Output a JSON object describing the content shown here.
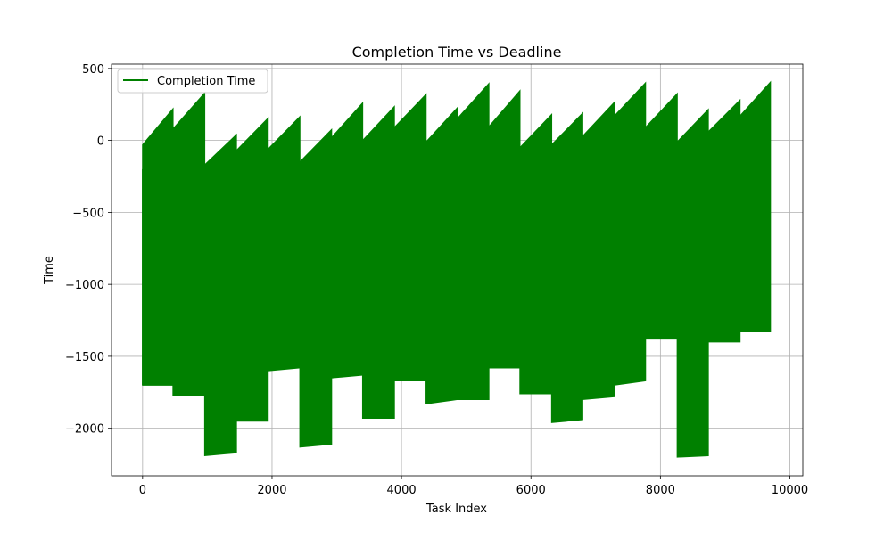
{
  "chart_data": {
    "type": "area",
    "title": "Completion Time vs Deadline",
    "xlabel": "Task Index",
    "ylabel": "Time",
    "xlim": [
      -480,
      10200
    ],
    "ylim": [
      -2330,
      530
    ],
    "x_ticks": [
      0,
      2000,
      4000,
      6000,
      8000,
      10000
    ],
    "y_ticks": [
      -2000,
      -1500,
      -1000,
      -500,
      0,
      500
    ],
    "grid": true,
    "legend_position": "top-left",
    "series": [
      {
        "name": "Completion Time",
        "color": "#008000",
        "style": "dense oscillating line filling the band between lower and upper envelopes",
        "envelope_segments": [
          {
            "x0": 0,
            "x1": 470,
            "upper0": -30,
            "upper1": 220,
            "lower0": -1700,
            "lower1": -1700
          },
          {
            "x0": 470,
            "x1": 960,
            "upper0": 80,
            "upper1": 330,
            "lower0": -1775,
            "lower1": -1775
          },
          {
            "x0": 960,
            "x1": 1450,
            "upper0": -170,
            "upper1": 40,
            "lower0": -2190,
            "lower1": -2170
          },
          {
            "x0": 1450,
            "x1": 1940,
            "upper0": -70,
            "upper1": 155,
            "lower0": -1950,
            "lower1": -1950
          },
          {
            "x0": 1940,
            "x1": 2430,
            "upper0": -60,
            "upper1": 165,
            "lower0": -1600,
            "lower1": -1580
          },
          {
            "x0": 2430,
            "x1": 2920,
            "upper0": -150,
            "upper1": 75,
            "lower0": -2130,
            "lower1": -2110
          },
          {
            "x0": 2920,
            "x1": 3400,
            "upper0": 20,
            "upper1": 260,
            "lower0": -1650,
            "lower1": -1630
          },
          {
            "x0": 3400,
            "x1": 3890,
            "upper0": 0,
            "upper1": 235,
            "lower0": -1930,
            "lower1": -1930
          },
          {
            "x0": 3890,
            "x1": 4380,
            "upper0": 90,
            "upper1": 320,
            "lower0": -1670,
            "lower1": -1670
          },
          {
            "x0": 4380,
            "x1": 4860,
            "upper0": -10,
            "upper1": 225,
            "lower0": -1830,
            "lower1": -1800
          },
          {
            "x0": 4860,
            "x1": 5350,
            "upper0": 150,
            "upper1": 395,
            "lower0": -1800,
            "lower1": -1800
          },
          {
            "x0": 5350,
            "x1": 5830,
            "upper0": 95,
            "upper1": 345,
            "lower0": -1580,
            "lower1": -1580
          },
          {
            "x0": 5830,
            "x1": 6320,
            "upper0": -50,
            "upper1": 180,
            "lower0": -1760,
            "lower1": -1760
          },
          {
            "x0": 6320,
            "x1": 6800,
            "upper0": -30,
            "upper1": 190,
            "lower0": -1960,
            "lower1": -1940
          },
          {
            "x0": 6800,
            "x1": 7290,
            "upper0": 30,
            "upper1": 265,
            "lower0": -1800,
            "lower1": -1780
          },
          {
            "x0": 7290,
            "x1": 7770,
            "upper0": 170,
            "upper1": 400,
            "lower0": -1700,
            "lower1": -1670
          },
          {
            "x0": 7770,
            "x1": 8260,
            "upper0": 90,
            "upper1": 325,
            "lower0": -1380,
            "lower1": -1380
          },
          {
            "x0": 8260,
            "x1": 8740,
            "upper0": -10,
            "upper1": 215,
            "lower0": -2200,
            "lower1": -2190
          },
          {
            "x0": 8740,
            "x1": 9230,
            "upper0": 60,
            "upper1": 280,
            "lower0": -1400,
            "lower1": -1400
          },
          {
            "x0": 9230,
            "x1": 9700,
            "upper0": 170,
            "upper1": 405,
            "lower0": -1330,
            "lower1": -1330
          }
        ]
      }
    ]
  }
}
